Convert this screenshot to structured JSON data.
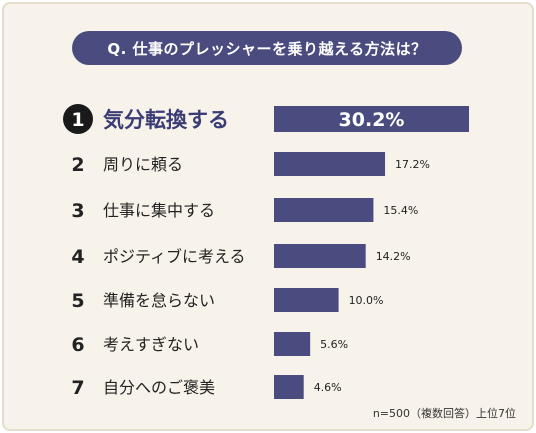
{
  "question": "Q. 仕事のプレッシャーを乗り越える方法は？",
  "footnote": "n=500（複数回答）上位7位",
  "colors": {
    "background": "#f8f3ea",
    "bar": "#4a4c7f",
    "text": "#222222",
    "highlight_text": "#3a3d75",
    "badge": "#1a1a1a"
  },
  "chart_data": {
    "type": "bar",
    "orientation": "horizontal",
    "categories": [
      "気分転換する",
      "周りに頼る",
      "仕事に集中する",
      "ポジティブに考える",
      "準備を怠らない",
      "考えすぎない",
      "自分へのご褒美"
    ],
    "ranks": [
      "1",
      "2",
      "3",
      "4",
      "5",
      "6",
      "7"
    ],
    "values": [
      30.2,
      17.2,
      15.4,
      14.2,
      10.0,
      5.6,
      4.6
    ],
    "value_labels": [
      "30.2%",
      "17.2%",
      "15.4%",
      "14.2%",
      "10.0%",
      "5.6%",
      "4.6%"
    ],
    "xlim": [
      0,
      30.2
    ],
    "title": "Q. 仕事のプレッシャーを乗り越える方法は？"
  }
}
